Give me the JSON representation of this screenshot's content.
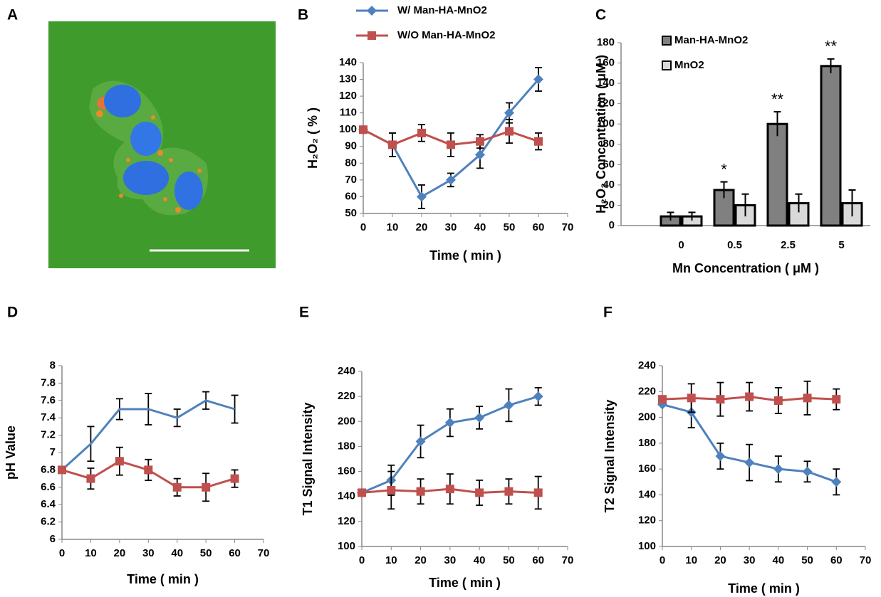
{
  "panel_a": {
    "label": "A"
  },
  "chart_data": [
    {
      "type": "line",
      "panel": "B",
      "xlabel": "Time ( min )",
      "ylabel": "H₂O₂ ( % )",
      "x": [
        0,
        10,
        20,
        30,
        40,
        50,
        60
      ],
      "xlim": [
        0,
        70
      ],
      "xticks": [
        0,
        10,
        20,
        30,
        40,
        50,
        60,
        70
      ],
      "ylim": [
        50,
        140
      ],
      "yticks": [
        50,
        60,
        70,
        80,
        90,
        100,
        110,
        120,
        130,
        140
      ],
      "legend": true,
      "series": [
        {
          "name": "W/  Man-HA-MnO2",
          "color": "#4f81bd",
          "marker": "diamond",
          "values": [
            100,
            91,
            60,
            70,
            85,
            110,
            130
          ],
          "errors": [
            0,
            7,
            7,
            4,
            8,
            6,
            7
          ]
        },
        {
          "name": "W/O  Man-HA-MnO2",
          "color": "#c0504d",
          "marker": "square",
          "values": [
            100,
            91,
            98,
            91,
            93,
            99,
            93
          ],
          "errors": [
            0,
            7,
            5,
            7,
            4,
            7,
            5
          ]
        }
      ]
    },
    {
      "type": "bar",
      "panel": "C",
      "xlabel": "Mn Concentration ( μM )",
      "ylabel": "H₂O₂ Concentration ( μM )",
      "categories": [
        "0",
        "0.5",
        "2.5",
        "5"
      ],
      "ylim": [
        0,
        180
      ],
      "yticks": [
        0,
        20,
        40,
        60,
        80,
        100,
        120,
        140,
        160,
        180
      ],
      "legend": true,
      "significance": [
        null,
        "*",
        "**",
        "**"
      ],
      "series": [
        {
          "name": "Man-HA-MnO2",
          "color": "#808080",
          "values": [
            9,
            35,
            100,
            157
          ],
          "errors": [
            4,
            8,
            12,
            7
          ]
        },
        {
          "name": "MnO2",
          "color": "#d9d9d9",
          "values": [
            9,
            20,
            22,
            22
          ],
          "errors": [
            4,
            11,
            9,
            13
          ]
        }
      ]
    },
    {
      "type": "line",
      "panel": "D",
      "xlabel": "Time ( min )",
      "ylabel": "pH Value",
      "x": [
        0,
        10,
        20,
        30,
        40,
        50,
        60
      ],
      "xlim": [
        0,
        70
      ],
      "xticks": [
        0,
        10,
        20,
        30,
        40,
        50,
        60,
        70
      ],
      "ylim": [
        6,
        8
      ],
      "yticks": [
        6,
        6.2,
        6.4,
        6.6,
        6.8,
        7,
        7.2,
        7.4,
        7.6,
        7.8,
        8
      ],
      "legend": false,
      "series": [
        {
          "color": "#4f81bd",
          "marker": "none",
          "values": [
            6.8,
            7.1,
            7.5,
            7.5,
            7.4,
            7.6,
            7.5
          ],
          "errors": [
            0,
            0.2,
            0.12,
            0.18,
            0.1,
            0.1,
            0.16
          ]
        },
        {
          "color": "#c0504d",
          "marker": "square",
          "values": [
            6.8,
            6.7,
            6.9,
            6.8,
            6.6,
            6.6,
            6.7
          ],
          "errors": [
            0,
            0.12,
            0.16,
            0.12,
            0.1,
            0.16,
            0.1
          ]
        }
      ]
    },
    {
      "type": "line",
      "panel": "E",
      "xlabel": "Time ( min )",
      "ylabel": "T1 Signal Intensity",
      "x": [
        0,
        10,
        20,
        30,
        40,
        50,
        60
      ],
      "xlim": [
        0,
        70
      ],
      "xticks": [
        0,
        10,
        20,
        30,
        40,
        50,
        60,
        70
      ],
      "ylim": [
        100,
        240
      ],
      "yticks": [
        100,
        120,
        140,
        160,
        180,
        200,
        220,
        240
      ],
      "legend": false,
      "series": [
        {
          "color": "#4f81bd",
          "marker": "diamond",
          "values": [
            143,
            153,
            184,
            199,
            203,
            213,
            220
          ],
          "errors": [
            0,
            12,
            13,
            11,
            9,
            13,
            7
          ]
        },
        {
          "color": "#c0504d",
          "marker": "square",
          "values": [
            143,
            145,
            144,
            146,
            143,
            144,
            143
          ],
          "errors": [
            0,
            15,
            10,
            12,
            10,
            10,
            13
          ]
        }
      ]
    },
    {
      "type": "line",
      "panel": "F",
      "xlabel": "Time ( min )",
      "ylabel": "T2 Signal Intensity",
      "x": [
        0,
        10,
        20,
        30,
        40,
        50,
        60
      ],
      "xlim": [
        0,
        70
      ],
      "xticks": [
        0,
        10,
        20,
        30,
        40,
        50,
        60,
        70
      ],
      "ylim": [
        100,
        240
      ],
      "yticks": [
        100,
        120,
        140,
        160,
        180,
        200,
        220,
        240
      ],
      "legend": false,
      "series": [
        {
          "color": "#4f81bd",
          "marker": "diamond",
          "values": [
            210,
            204,
            170,
            165,
            160,
            158,
            150
          ],
          "errors": [
            0,
            12,
            10,
            14,
            10,
            8,
            10
          ]
        },
        {
          "color": "#c0504d",
          "marker": "square",
          "values": [
            214,
            215,
            214,
            216,
            213,
            215,
            214
          ],
          "errors": [
            0,
            11,
            13,
            11,
            10,
            13,
            8
          ]
        }
      ]
    }
  ]
}
